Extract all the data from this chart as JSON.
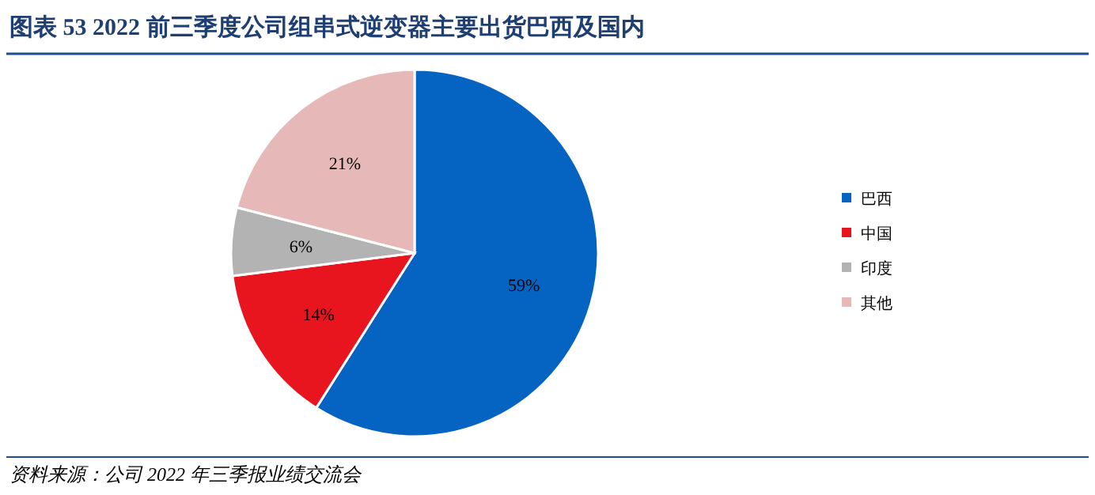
{
  "chart_data": {
    "type": "pie",
    "title": "图表 53   2022 前三季度公司组串式逆变器主要出货巴西及国内",
    "categories": [
      "巴西",
      "中国",
      "印度",
      "其他"
    ],
    "values": [
      59,
      14,
      6,
      21
    ],
    "colors": [
      "#0563c1",
      "#e8141e",
      "#b3b3b3",
      "#e6b9b8"
    ],
    "value_labels": [
      "59%",
      "14%",
      "6%",
      "21%"
    ],
    "legend": "right",
    "annotations": [
      "资料来源：公司 2022 年三季报业绩交流会"
    ]
  }
}
